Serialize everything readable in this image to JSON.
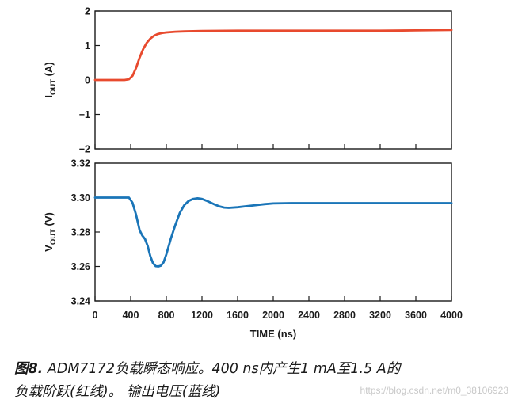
{
  "chart_data": [
    {
      "type": "line",
      "ylabel": {
        "main": "I",
        "sub": "OUT",
        "unit": " (A)"
      },
      "xlim": [
        0,
        4000
      ],
      "ylim": [
        -2,
        2
      ],
      "yticks": [
        "2",
        "1",
        "0",
        "−1",
        "−2"
      ],
      "ytick_values": [
        2,
        1,
        0,
        -1,
        -2
      ],
      "grid": false,
      "series": [
        {
          "color": "#e84a2e",
          "x": [
            0,
            200,
            330,
            380,
            420,
            460,
            500,
            540,
            580,
            620,
            660,
            700,
            750,
            800,
            900,
            1000,
            1200,
            1600,
            2000,
            2400,
            2800,
            3200,
            3600,
            4000
          ],
          "y": [
            0.0,
            0.0,
            0.0,
            0.02,
            0.12,
            0.35,
            0.65,
            0.9,
            1.08,
            1.2,
            1.28,
            1.33,
            1.36,
            1.38,
            1.4,
            1.41,
            1.42,
            1.43,
            1.43,
            1.43,
            1.43,
            1.43,
            1.44,
            1.45
          ]
        }
      ]
    },
    {
      "type": "line",
      "xlabel": "TIME (ns)",
      "ylabel": {
        "main": "V",
        "sub": "OUT",
        "unit": " (V)"
      },
      "xlim": [
        0,
        4000
      ],
      "ylim": [
        3.24,
        3.32
      ],
      "xticks": [
        "0",
        "400",
        "800",
        "1200",
        "1600",
        "2000",
        "2400",
        "2800",
        "3200",
        "3600",
        "4000"
      ],
      "xtick_values": [
        0,
        400,
        800,
        1200,
        1600,
        2000,
        2400,
        2800,
        3200,
        3600,
        4000
      ],
      "yticks": [
        "3.32",
        "3.30",
        "3.28",
        "3.26",
        "3.24"
      ],
      "ytick_values": [
        3.32,
        3.3,
        3.28,
        3.26,
        3.24
      ],
      "grid": false,
      "series": [
        {
          "color": "#1a75b8",
          "x": [
            0,
            150,
            250,
            320,
            380,
            420,
            460,
            500,
            530,
            560,
            590,
            620,
            650,
            680,
            710,
            740,
            770,
            800,
            850,
            900,
            950,
            1000,
            1050,
            1100,
            1150,
            1200,
            1250,
            1300,
            1350,
            1400,
            1450,
            1500,
            1600,
            1700,
            1800,
            1900,
            2000,
            2200,
            2400,
            2800,
            3200,
            3600,
            4000
          ],
          "y": [
            3.3,
            3.3,
            3.3,
            3.3,
            3.3,
            3.297,
            3.29,
            3.281,
            3.278,
            3.276,
            3.272,
            3.266,
            3.262,
            3.2602,
            3.26,
            3.2605,
            3.2625,
            3.267,
            3.276,
            3.284,
            3.291,
            3.2955,
            3.298,
            3.2992,
            3.2996,
            3.2992,
            3.2982,
            3.297,
            3.2958,
            3.2948,
            3.2942,
            3.294,
            3.2944,
            3.295,
            3.2956,
            3.2962,
            3.2966,
            3.2968,
            3.2968,
            3.2968,
            3.2968,
            3.2968,
            3.2968
          ]
        }
      ]
    }
  ],
  "caption": {
    "label": "图8.",
    "text": " ADM7172负载瞬态响应。400 ns内产生1 mA至1.5 A的",
    "line2": "负载阶跃(红线)。 输出电压(蓝线)"
  },
  "watermark": "https://blog.csdn.net/m0_38106923"
}
